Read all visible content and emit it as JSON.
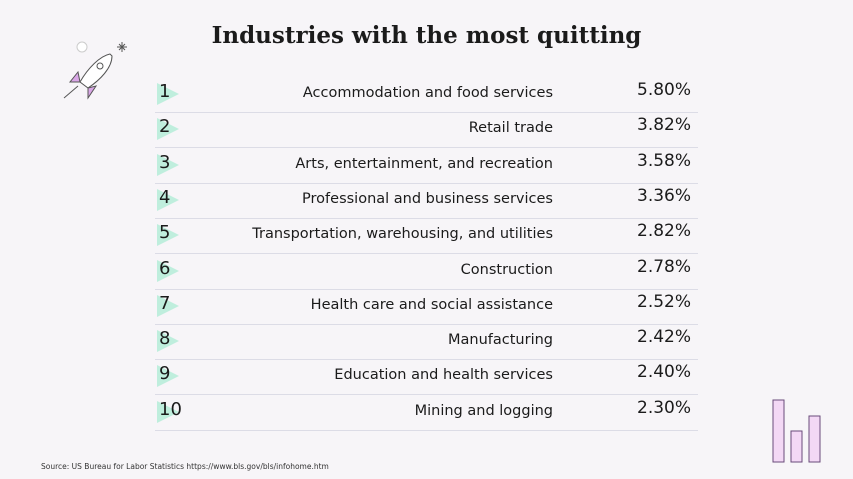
{
  "title": "Industries with the most quitting",
  "table": {
    "rows": [
      [
        "1",
        "Accommodation and food services",
        "5.80%"
      ],
      [
        "2",
        "Retail trade",
        "3.82%"
      ],
      [
        "3",
        "Arts, entertainment, and recreation",
        "3.58%"
      ],
      [
        "4",
        "Professional and business services",
        "3.36%"
      ],
      [
        "5",
        "Transportation, warehousing, and utilities",
        "2.82%"
      ],
      [
        "6",
        "Construction",
        "2.78%"
      ],
      [
        "7",
        "Health care and social assistance",
        "2.52%"
      ],
      [
        "8",
        "Manufacturing",
        "2.42%"
      ],
      [
        "9",
        "Education and health services",
        "2.40%"
      ],
      [
        "10",
        "Mining and logging",
        "2.30%"
      ]
    ]
  },
  "source": "Source: US Bureau for Labor Statistics https://www.bls.gov/bls/infohome.htm"
}
